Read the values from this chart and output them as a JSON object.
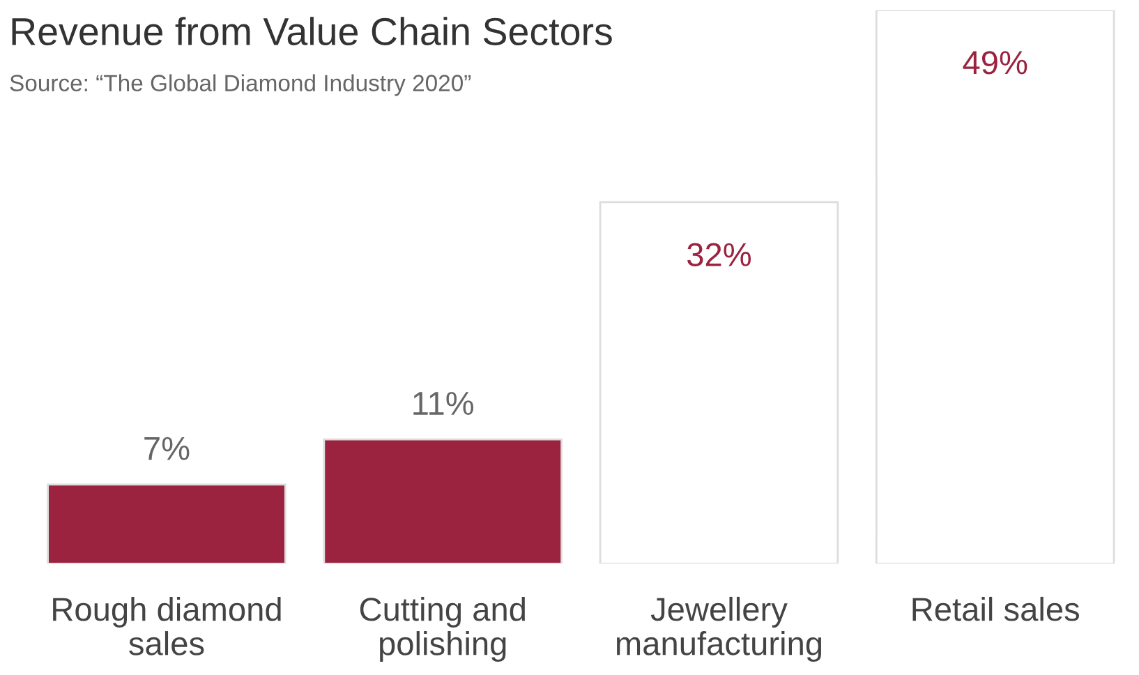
{
  "chart_data": {
    "type": "bar",
    "title": "Revenue from Value Chain Sectors",
    "annotations": [
      "Source: “The Global Diamond Industry 2020”"
    ],
    "categories": [
      "Rough diamond\nsales",
      "Cutting and\npolishing",
      "Jewellery\nmanufacturing",
      "Retail sales"
    ],
    "values": [
      7,
      11,
      32,
      49
    ],
    "colors": [
      "#9b2340",
      "#9b2340",
      "#ffffff",
      "#ffffff"
    ],
    "value_labels": [
      "7%",
      "11%",
      "32%",
      "49%"
    ]
  }
}
